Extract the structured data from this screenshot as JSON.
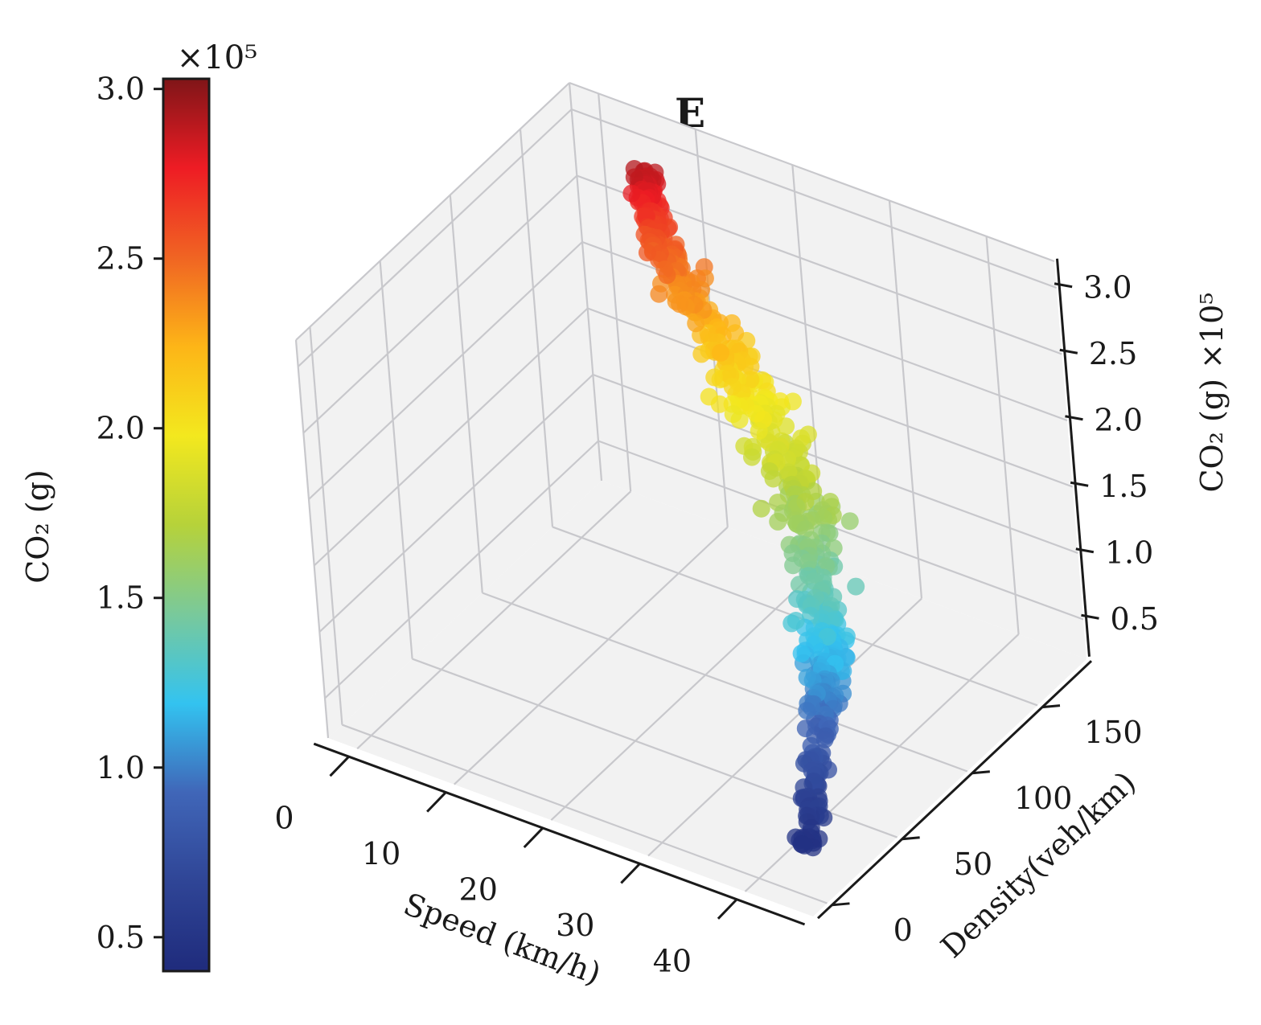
{
  "chart_data": {
    "type": "scatter",
    "projection": "3d",
    "title": "E",
    "xlabel": "Speed (km/h)",
    "ylabel": "Density(veh/km)",
    "zlabel": "CO₂ (g) ×10⁵",
    "xlim": [
      -3,
      47
    ],
    "ylim": [
      -10,
      185
    ],
    "zlim": [
      0.2,
      3.2
    ],
    "x_ticks": [
      0,
      10,
      20,
      30,
      40
    ],
    "y_ticks": [
      0,
      50,
      100,
      150
    ],
    "z_ticks": [
      0.5,
      1.0,
      1.5,
      2.0,
      2.5,
      3.0
    ],
    "x_tick_labels": [
      "0",
      "10",
      "20",
      "30",
      "40"
    ],
    "y_tick_labels": [
      "0",
      "50",
      "100",
      "150"
    ],
    "z_tick_labels": [
      "0.5",
      "1.0",
      "1.5",
      "2.0",
      "2.5",
      "3.0"
    ],
    "grid": true,
    "colorbar": {
      "label": "CO₂ (g)",
      "multiplier": "×10⁵",
      "range": [
        0.4,
        3.03
      ],
      "ticks": [
        0.5,
        1.0,
        1.5,
        2.0,
        2.5,
        3.0
      ],
      "tick_labels": [
        "0.5",
        "1.0",
        "1.5",
        "2.0",
        "2.5",
        "3.0"
      ],
      "colormap": [
        "#1f2b7c",
        "#2f4596",
        "#4066b8",
        "#33c3f0",
        "#79c99b",
        "#b6d23a",
        "#f3e81e",
        "#fdb517",
        "#f06423",
        "#ee1c24",
        "#7f1518"
      ]
    },
    "trajectory": {
      "note": "Points lie along a curve from high speed / low density (low CO2) to low speed / high density (high CO2); values in (speed km/h, density veh/km, CO2 x1e5 g).",
      "path": [
        [
          44.0,
          10,
          0.45
        ],
        [
          42.0,
          30,
          0.7
        ],
        [
          40.0,
          50,
          0.95
        ],
        [
          38.0,
          68,
          1.15
        ],
        [
          35.5,
          85,
          1.35
        ],
        [
          32.0,
          102,
          1.55
        ],
        [
          28.0,
          118,
          1.75
        ],
        [
          23.0,
          132,
          1.95
        ],
        [
          18.0,
          144,
          2.15
        ],
        [
          13.0,
          154,
          2.35
        ],
        [
          9.0,
          162,
          2.55
        ],
        [
          7.0,
          168,
          2.72
        ],
        [
          6.0,
          173,
          2.9
        ]
      ],
      "count": 600
    }
  }
}
